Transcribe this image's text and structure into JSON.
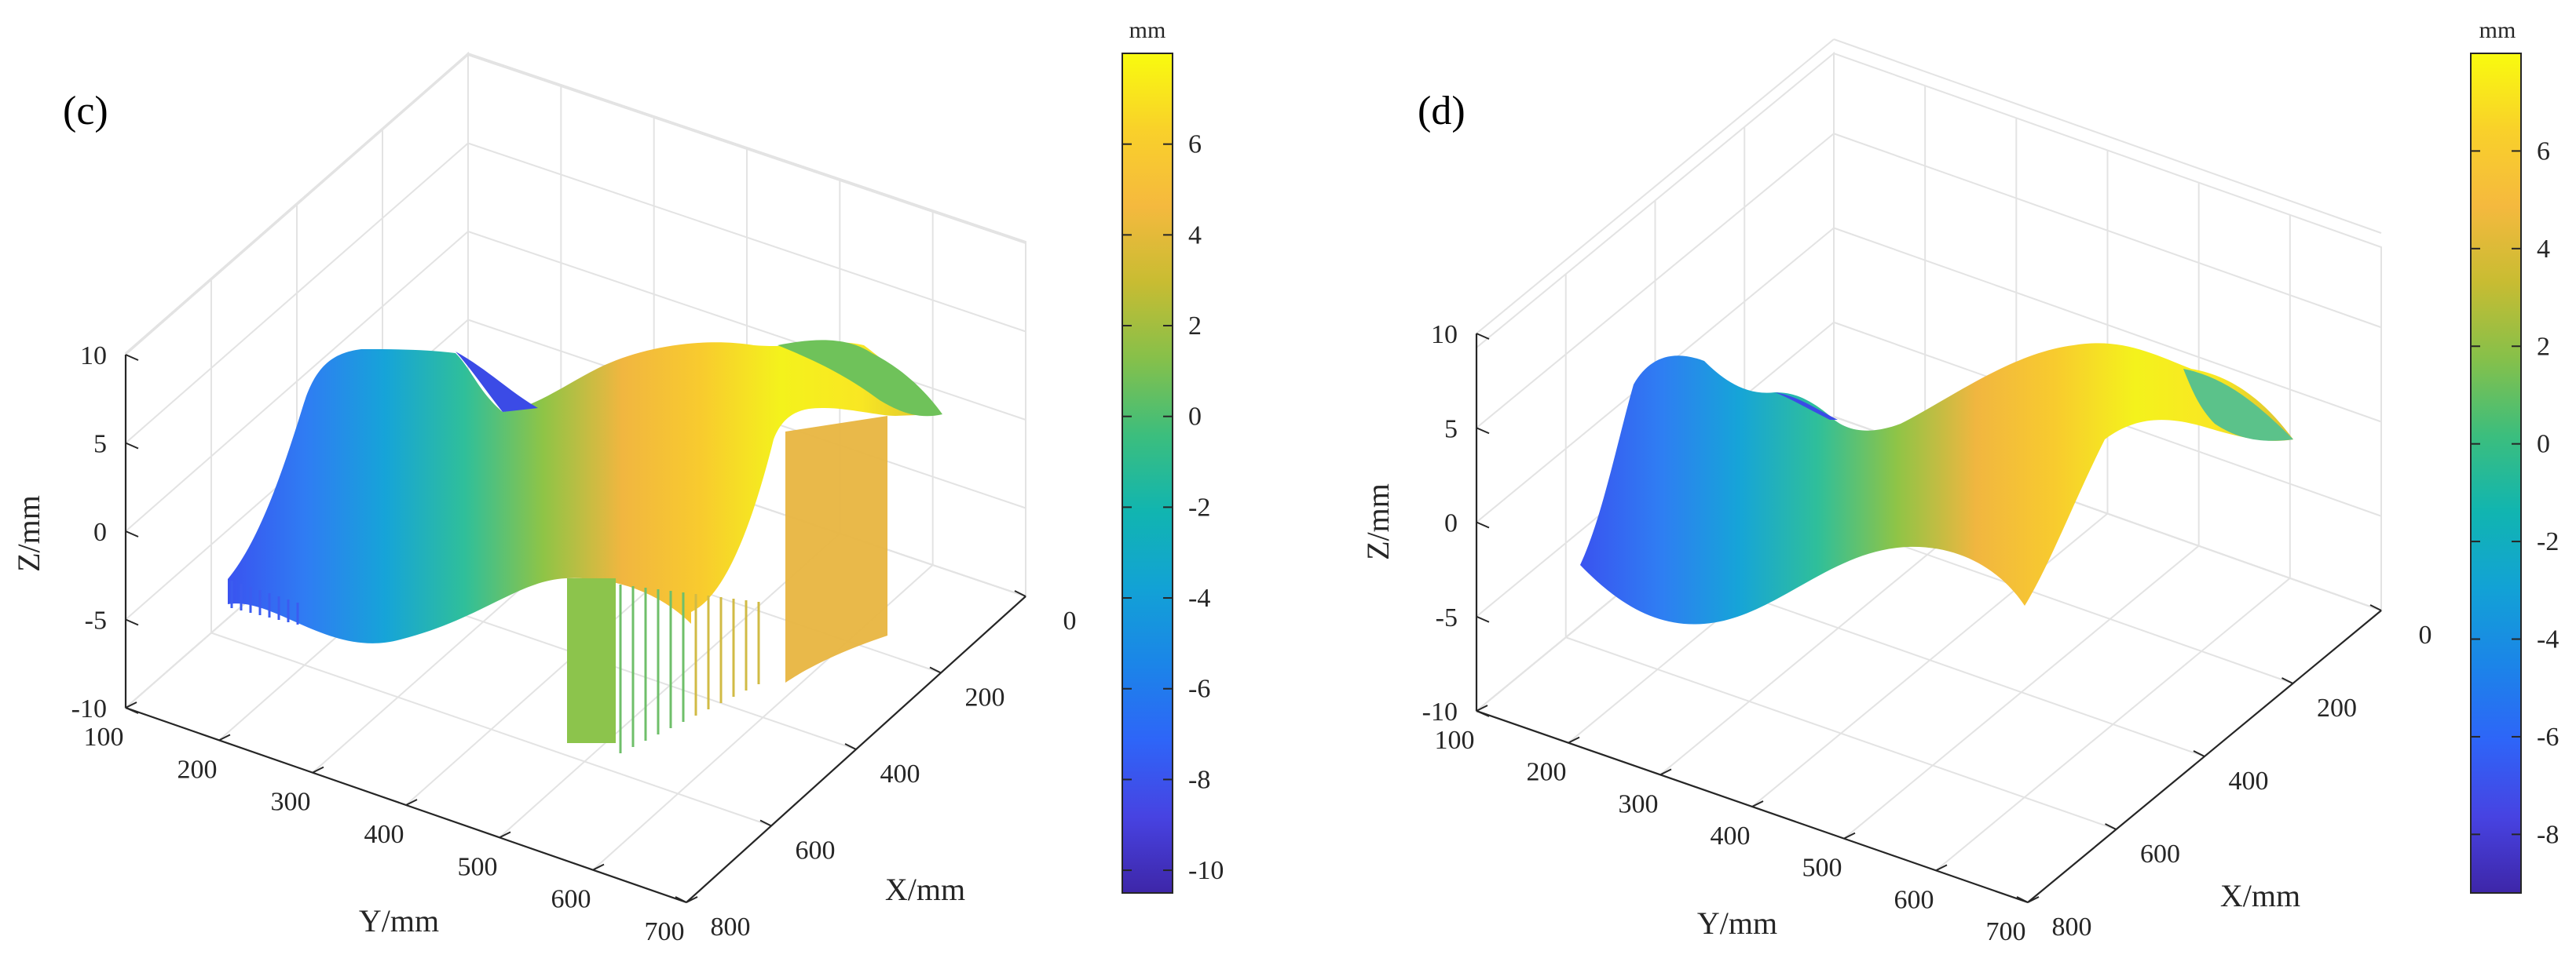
{
  "figure": {
    "colormap": [
      "#3e26a8",
      "#4743e2",
      "#2e65f8",
      "#1b85e8",
      "#12a2d5",
      "#11b5b0",
      "#3cbe7d",
      "#86c04a",
      "#c8bc32",
      "#f5b93e",
      "#f9d12a",
      "#f9fb0e"
    ]
  },
  "chart_data": [
    {
      "type": "surface3d",
      "panel_label": "(c)",
      "xlabel": "X/mm",
      "ylabel": "Y/mm",
      "zlabel": "Z/mm",
      "x_ticks": [
        "0",
        "200",
        "400",
        "600",
        "800"
      ],
      "y_ticks": [
        "100",
        "200",
        "300",
        "400",
        "500",
        "600",
        "700"
      ],
      "z_ticks": [
        "10",
        "5",
        "0",
        "-5",
        "-10"
      ],
      "xlim": [
        0,
        800
      ],
      "ylim": [
        100,
        700
      ],
      "zlim": [
        -10,
        10
      ],
      "colorbar": {
        "title": "mm",
        "range": [
          -10.5,
          8
        ],
        "ticks": [
          "6",
          "4",
          "2",
          "0",
          "-2",
          "-4",
          "-6",
          "-8",
          "-10"
        ]
      },
      "surface": {
        "x_range": [
          50,
          800
        ],
        "y_range": [
          100,
          450
        ],
        "z_min": -10.5,
        "z_max": 8,
        "description": "saddle-like surface with partial vertical curtains"
      }
    },
    {
      "type": "surface3d",
      "panel_label": "(d)",
      "xlabel": "X/mm",
      "ylabel": "Y/mm",
      "zlabel": "Z/mm",
      "x_ticks": [
        "0",
        "200",
        "400",
        "600",
        "800"
      ],
      "y_ticks": [
        "100",
        "200",
        "300",
        "400",
        "500",
        "600",
        "700"
      ],
      "z_ticks": [
        "10",
        "5",
        "0",
        "-5",
        "-10"
      ],
      "xlim": [
        0,
        800
      ],
      "ylim": [
        100,
        700
      ],
      "zlim": [
        -10,
        10
      ],
      "colorbar": {
        "title": "mm",
        "range": [
          -9.2,
          8
        ],
        "ticks": [
          "6",
          "4",
          "2",
          "0",
          "-2",
          "-4",
          "-6",
          "-8"
        ]
      },
      "surface": {
        "x_range": [
          50,
          800
        ],
        "y_range": [
          100,
          450
        ],
        "z_min": -9.2,
        "z_max": 8,
        "description": "smooth saddle-like surface"
      }
    }
  ]
}
